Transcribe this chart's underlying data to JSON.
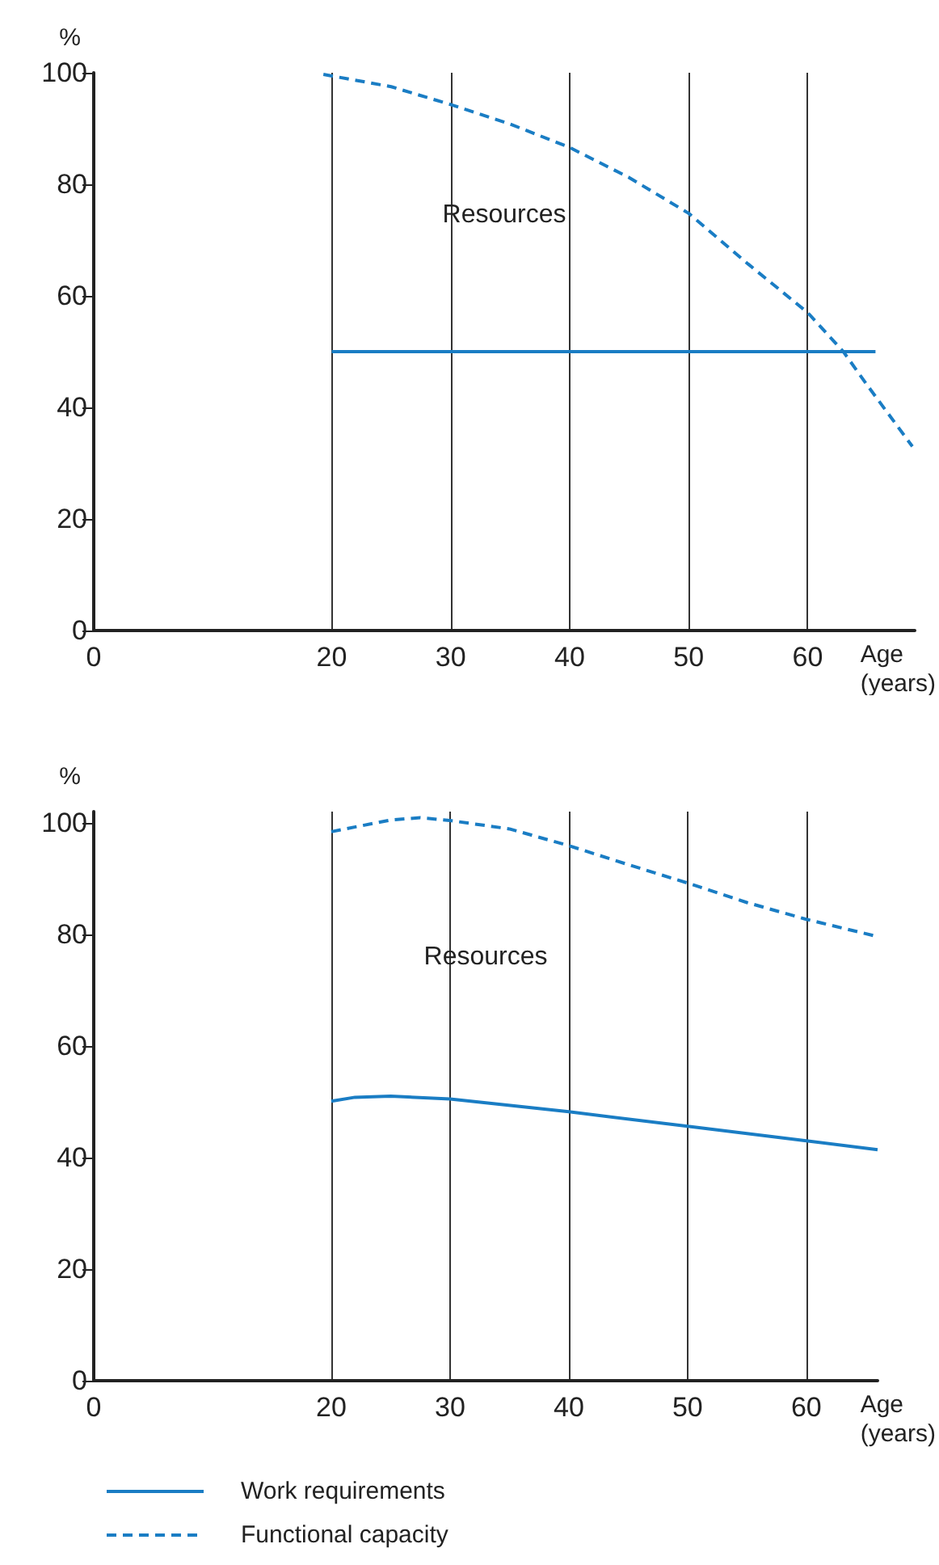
{
  "chart_data": [
    {
      "type": "line",
      "ylabel": "%",
      "xlabel": "Age\n(years)",
      "xlim": [
        0,
        69
      ],
      "ylim": [
        0,
        100
      ],
      "xticks": [
        0,
        20,
        30,
        40,
        50,
        60
      ],
      "yticks": [
        0,
        20,
        40,
        60,
        80,
        100
      ],
      "grid": "x",
      "marker": "none",
      "annotations": [
        "Resources"
      ],
      "series": [
        {
          "color": "#1a7dc4",
          "line_style": "solid",
          "x": [
            20,
            65.7
          ],
          "values": [
            50,
            50
          ]
        },
        {
          "color": "#1a7dc4",
          "line_style": "dashed",
          "x": [
            19.3,
            25,
            30,
            35,
            40,
            45,
            50,
            55,
            60,
            63,
            65,
            68.8
          ],
          "values": [
            99.7,
            97.5,
            94.3,
            90.8,
            86.6,
            81.2,
            74.8,
            65.7,
            57,
            50,
            44,
            33
          ]
        }
      ]
    },
    {
      "type": "line",
      "ylabel": "%",
      "xlabel": "Age\n(years)",
      "xlim": [
        0,
        66
      ],
      "ylim": [
        0,
        102
      ],
      "xticks": [
        0,
        20,
        30,
        40,
        50,
        60
      ],
      "yticks": [
        0,
        20,
        40,
        60,
        80,
        100
      ],
      "grid": "x",
      "marker": "none",
      "legend": "bottom",
      "annotations": [
        "Resources"
      ],
      "series": [
        {
          "name": "Work requirements",
          "color": "#1a7dc4",
          "line_style": "solid",
          "x": [
            20,
            22,
            25,
            30,
            40,
            50,
            60,
            66
          ],
          "values": [
            50.1,
            50.8,
            51,
            50.5,
            48.2,
            45.6,
            43,
            41.4
          ]
        },
        {
          "name": "Functional capacity",
          "color": "#1a7dc4",
          "line_style": "dashed",
          "x": [
            20,
            25,
            27.5,
            30,
            35,
            40,
            45,
            50,
            55,
            60,
            66
          ],
          "values": [
            98.4,
            100.5,
            100.9,
            100.4,
            98.9,
            95.9,
            92.5,
            89.2,
            85.7,
            82.7,
            79.6
          ]
        }
      ]
    }
  ]
}
